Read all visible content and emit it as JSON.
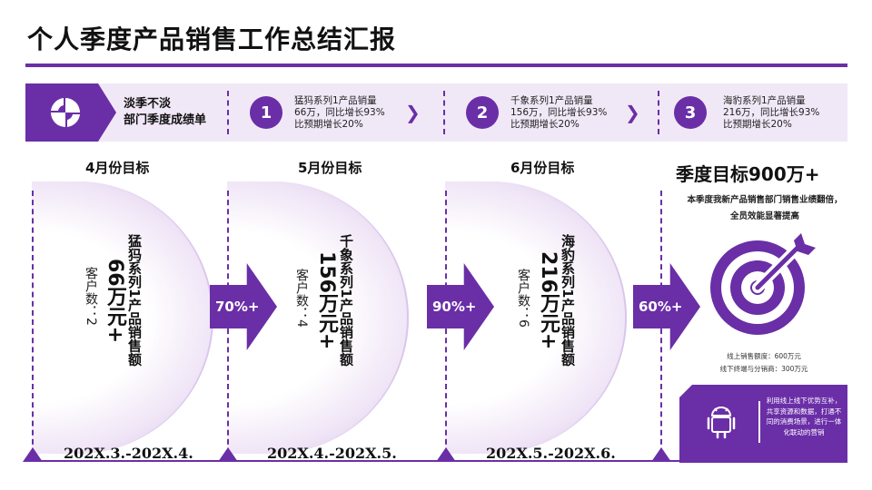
{
  "title": "个人季度产品销售工作总结汇报",
  "strip": {
    "heading": [
      "淡季不淡",
      "部门季度成绩单"
    ],
    "items": [
      {
        "num": "1",
        "lines": [
          "猛犸系列1产品销量",
          "66万，同比增长93%",
          "比预期增长20%"
        ]
      },
      {
        "num": "2",
        "lines": [
          "千象系列1产品销量",
          "156万，同比增长93%",
          "比预期增长20%"
        ]
      },
      {
        "num": "3",
        "lines": [
          "海豹系列1产品销量",
          "216万，同比增长93%",
          "比预期增长20%"
        ]
      }
    ],
    "chevron": "❯"
  },
  "months": [
    {
      "heading": "4月份目标",
      "series": "猛犸系列1产品销售额",
      "amount": "66万元+",
      "customers": "客户数：2",
      "date": "202X.3.-202X.4."
    },
    {
      "heading": "5月份目标",
      "series": "千象系列1产品销售额",
      "amount": "156万元+",
      "customers": "客户数：4",
      "date": "202X.4.-202X.5."
    },
    {
      "heading": "6月份目标",
      "series": "海豹系列1产品销售额",
      "amount": "216万元+",
      "customers": "客户数：6",
      "date": "202X.5.-202X.6."
    }
  ],
  "arrows": [
    "70%+",
    "90%+",
    "60%+"
  ],
  "goal": {
    "title": "季度目标900万+",
    "desc": "本季度我新产品销售部门销售业绩翻倍，全员效能显著提高",
    "online": "线上销售额度：600万元",
    "offline": "线下终端与分销商：300万元",
    "promo": "利用线上线下优势互补，共享资源和数据，打通不同的消费场景，进行一体化联动的营销"
  },
  "colors": {
    "accent": "#6a2ea7",
    "light": "#f1e8f7"
  },
  "icons": [
    "quarter-logo-icon",
    "target-icon",
    "android-icon"
  ]
}
